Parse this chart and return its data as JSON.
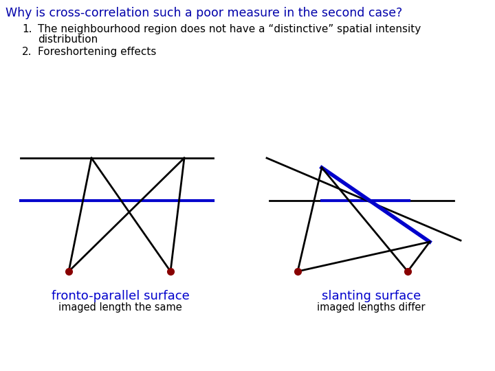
{
  "title": "Why is cross-correlation such a poor measure in the second case?",
  "title_color": "#0000aa",
  "title_fontsize": 12.5,
  "bullet1_num": "1.",
  "bullet1_text": "The neighbourhood region does not have a “distinctive” spatial intensity\n      distribution",
  "bullet2_num": "2.",
  "bullet2_text": "Foreshortening effects",
  "bullet_fontsize": 11,
  "bullet_color": "#000000",
  "label1": "fronto-parallel surface",
  "label1_color": "#0000cc",
  "label1_fontsize": 13,
  "label2": "slanting surface",
  "label2_color": "#0000cc",
  "label2_fontsize": 13,
  "sublabel1": "imaged length the same",
  "sublabel2": "imaged lengths differ",
  "sublabel_fontsize": 10.5,
  "sublabel_color": "#000000",
  "line_color_black": "#000000",
  "line_color_blue": "#0000cc",
  "dot_color": "#880000",
  "bg_color": "#ffffff"
}
